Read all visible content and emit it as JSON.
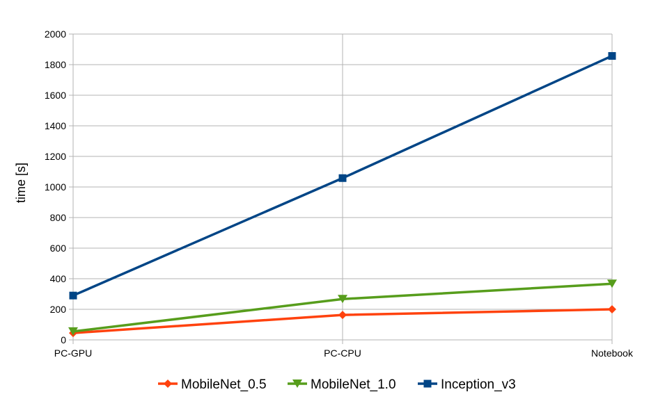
{
  "chart_data": {
    "type": "line",
    "categories": [
      "PC-GPU",
      "PC-CPU",
      "Notebook"
    ],
    "series": [
      {
        "name": "MobileNet_0.5",
        "values": [
          45,
          163,
          200
        ],
        "color": "#ff420e",
        "marker": "diamond"
      },
      {
        "name": "MobileNet_1.0",
        "values": [
          55,
          267,
          367
        ],
        "color": "#579d1c",
        "marker": "triangle-down"
      },
      {
        "name": "Inception_v3",
        "values": [
          290,
          1058,
          1857
        ],
        "color": "#004586",
        "marker": "square"
      }
    ],
    "xlabel": "",
    "ylabel": "time [s]",
    "ylim": [
      0,
      2000
    ],
    "yticks": [
      0,
      200,
      400,
      600,
      800,
      1000,
      1200,
      1400,
      1600,
      1800,
      2000
    ],
    "grid": true,
    "legend_position": "bottom"
  }
}
